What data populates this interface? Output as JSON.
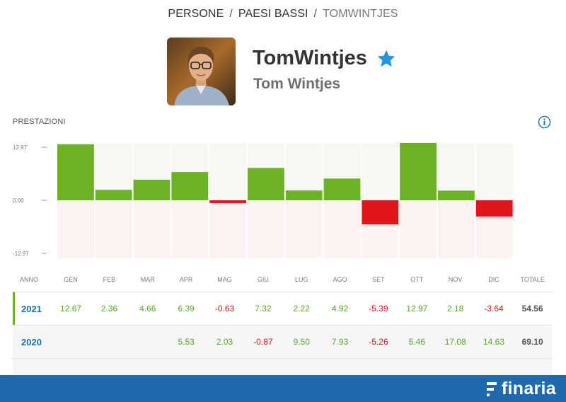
{
  "breadcrumb": {
    "items": [
      "PERSONE",
      "PAESI BASSI",
      "TOMWINTJES"
    ],
    "separator": "/"
  },
  "profile": {
    "handle": "TomWintjes",
    "full_name": "Tom Wintjes",
    "star_icon": "star-icon",
    "star_color": "#2196e3"
  },
  "section_title": "PRESTAZIONI",
  "chart_data": {
    "type": "bar",
    "categories": [
      "GEN",
      "FEB",
      "MAR",
      "APR",
      "MAG",
      "GIU",
      "LUG",
      "AGO",
      "SET",
      "OTT",
      "NOV",
      "DIC"
    ],
    "series": [
      {
        "values": [
          12.67,
          2.36,
          4.66,
          6.39,
          -0.63,
          7.32,
          2.22,
          4.92,
          -5.39,
          12.97,
          2.18,
          -3.64
        ]
      }
    ],
    "y_ticks": [
      "12.97",
      "0.00",
      "-12.97"
    ],
    "ylim": [
      -12.97,
      12.97
    ],
    "positive_color": "#6bb324",
    "negative_color": "#e3151c",
    "grid": false
  },
  "table": {
    "headers": [
      "ANNO",
      "GEN",
      "FEB",
      "MAR",
      "APR",
      "MAG",
      "GIU",
      "LUG",
      "AGO",
      "SET",
      "OTT",
      "NOV",
      "DIC",
      "TOTALE"
    ],
    "rows": [
      {
        "year": "2021",
        "values": [
          "12.67",
          "2.36",
          "4.66",
          "6.39",
          "-0.63",
          "7.32",
          "2.22",
          "4.92",
          "-5.39",
          "12.97",
          "2.18",
          "-3.64"
        ],
        "total": "54.56"
      },
      {
        "year": "2020",
        "values": [
          "",
          "",
          "",
          "5.53",
          "2.03",
          "-0.87",
          "9.50",
          "7.93",
          "-5.26",
          "5.46",
          "17.08",
          "14.63"
        ],
        "total": "69.10"
      }
    ]
  },
  "footer": {
    "brand": "finaria",
    "brand_color": "#1f69ac"
  }
}
